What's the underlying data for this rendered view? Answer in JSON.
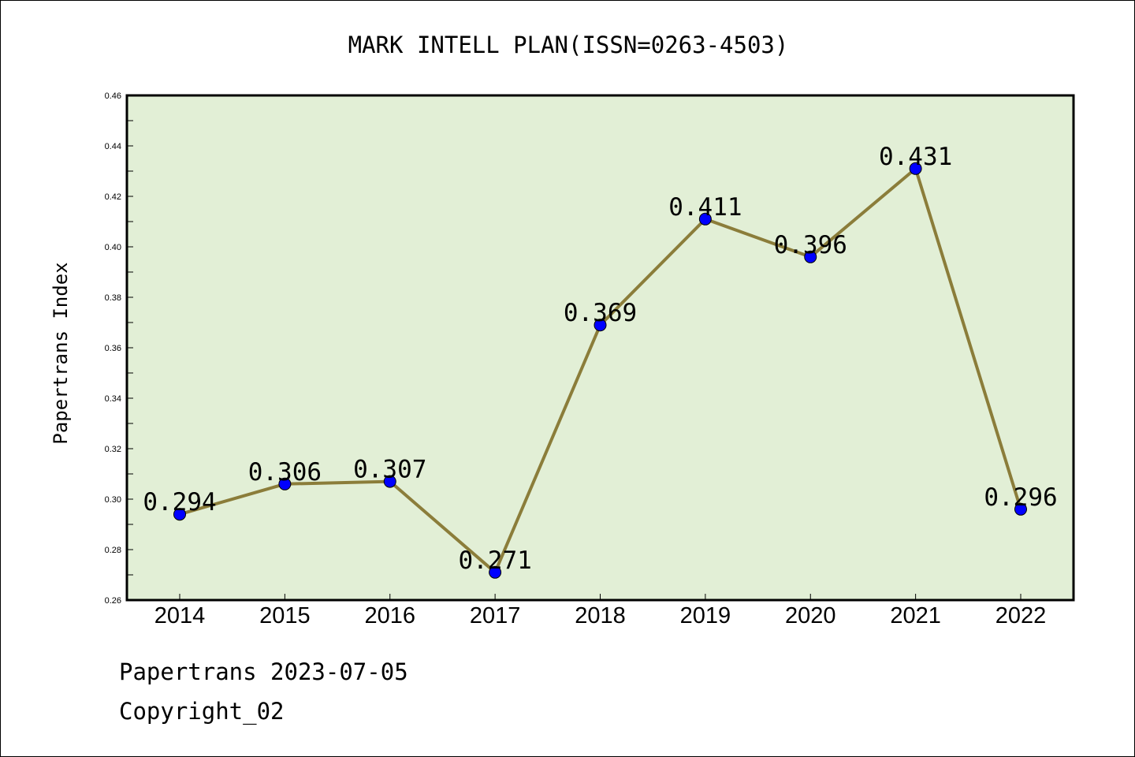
{
  "chart_data": {
    "type": "line",
    "title": "MARK INTELL PLAN(ISSN=0263-4503)",
    "xlabel": "",
    "ylabel": "Papertrans Index",
    "categories": [
      "2014",
      "2015",
      "2016",
      "2017",
      "2018",
      "2019",
      "2020",
      "2021",
      "2022"
    ],
    "series": [
      {
        "values": [
          0.294,
          0.306,
          0.307,
          0.271,
          0.369,
          0.411,
          0.396,
          0.431,
          0.296
        ],
        "labels": [
          "0.294",
          "0.306",
          "0.307",
          "0.271",
          "0.369",
          "0.411",
          "0.396",
          "0.431",
          "0.296"
        ]
      }
    ],
    "ylim": [
      0.26,
      0.46
    ],
    "yticks": [
      "0.26",
      "0.28",
      "0.30",
      "0.32",
      "0.34",
      "0.36",
      "0.38",
      "0.40",
      "0.42",
      "0.44",
      "0.46"
    ],
    "grid": false,
    "colors": {
      "plot_background": "#e2efd6",
      "line": "#8b7d3a",
      "marker": "#0000ff",
      "axes": "#000000"
    }
  },
  "footer": {
    "line1": "Papertrans 2023-07-05",
    "line2": "Copyright_02"
  }
}
